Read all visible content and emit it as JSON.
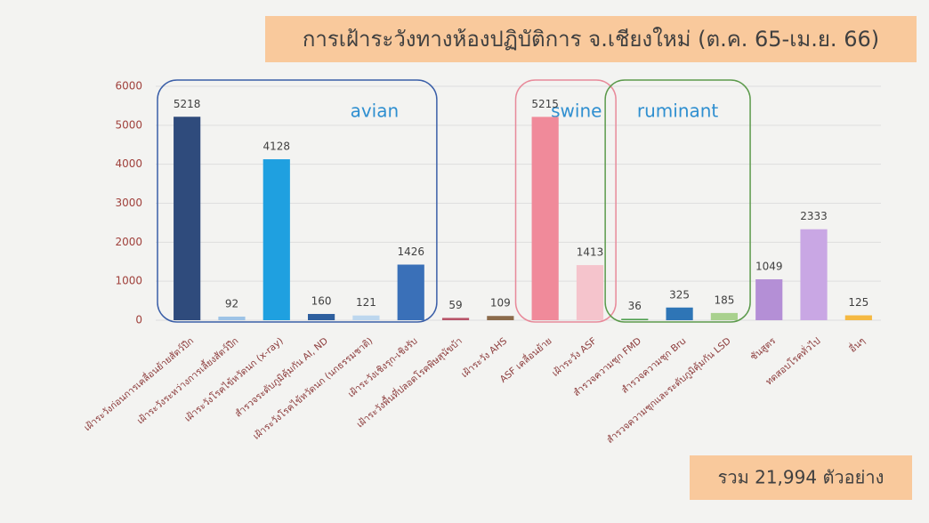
{
  "chart_data": {
    "type": "bar",
    "title": "การเฝ้าระวังทางห้องปฏิบัติการ จ.เชียงใหม่ (ต.ค. 65-เม.ย. 66)",
    "categories": [
      "เฝ้าระวังก่อนการเคลื่อนย้ายสัตว์ปีก",
      "เฝ้าระวังระหว่างการเลี้ยงสัตว์ปีก",
      "เฝ้าระวังโรคไข้หวัดนก (x-ray)",
      "สำรวจระดับภูมิคุ้มกัน AI, ND",
      "เฝ้าระวังโรคไข้หวัดนก (นกธรรมชาติ)",
      "เฝ้าระวังเชิงรุก-เชิงรับ",
      "เฝ้าระวังพื้นที่ปลอดโรคพิษสุนัขบ้า",
      "เฝ้าระวัง AHS",
      "ASF เคลื่อนย้าย",
      "เฝ้าระวัง ASF",
      "สำรวจความชุก FMD",
      "สำรวจความชุก Bru",
      "สำรวจความชุกและระดับภูมิคุ้มกัน LSD",
      "ชันสูตร",
      "ทดสอบโรคทั่วไป",
      "อื่นๆ"
    ],
    "values": [
      5218,
      92,
      4128,
      160,
      121,
      1426,
      59,
      109,
      5215,
      1413,
      36,
      325,
      185,
      1049,
      2333,
      125
    ],
    "colors": [
      "#2f4b7c",
      "#9dc3e6",
      "#1fa0e0",
      "#2e5f9e",
      "#bdd7ee",
      "#3a70b8",
      "#b85468",
      "#8b6b4b",
      "#f08a9a",
      "#f5c4cc",
      "#4f9f4f",
      "#2e75b6",
      "#a9d18e",
      "#b48fd6",
      "#c9a7e4",
      "#f5b942"
    ],
    "ylim": [
      0,
      6000
    ],
    "yticks": [
      0,
      1000,
      2000,
      3000,
      4000,
      5000,
      6000
    ],
    "grid": true,
    "annotations": [
      "avian",
      "swine",
      "ruminant"
    ],
    "total_label": "รวม 21,994 ตัวอย่าง"
  }
}
